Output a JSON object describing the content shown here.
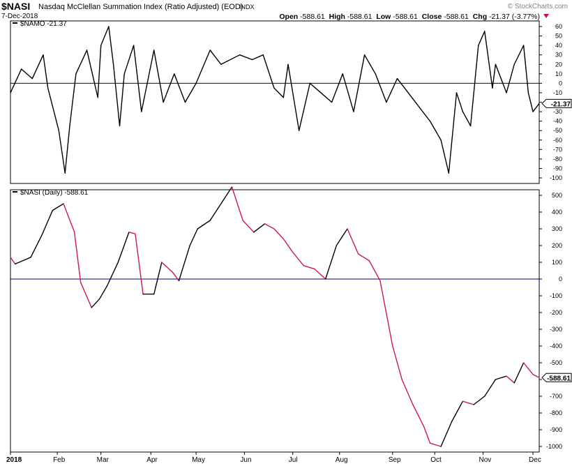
{
  "header": {
    "symbol": "$NASI",
    "title": "Nasdaq McClellan Summation Index (Ratio Adjusted) (EOD)",
    "exchange": "INDX",
    "brand": "© StockCharts.com",
    "date": "7-Dec-2018",
    "open_label": "Open",
    "open": "-588.61",
    "high_label": "High",
    "high": "-588.61",
    "low_label": "Low",
    "low": "-588.61",
    "close_label": "Close",
    "close": "-588.61",
    "chg_label": "Chg",
    "chg": "-21.37 (-3.77%)"
  },
  "colors": {
    "rising": "#000000",
    "falling": "#cc1a45",
    "zero_line": "#00006e",
    "grid": "#c0c0c0",
    "down_arrow": "#c0143c"
  },
  "chart_data": [
    {
      "type": "line",
      "legend": "$NAMO -21.37",
      "last_value_label": "-21.37",
      "ylim": [
        -100,
        60
      ],
      "ytick_labels": [
        "60",
        "50",
        "40",
        "30",
        "20",
        "10",
        "0",
        "-10",
        "-20",
        "-30",
        "-40",
        "-50",
        "-60",
        "-70",
        "-80",
        "-90",
        "-100"
      ],
      "zero_line": 0,
      "x": [
        "2018-01-02",
        "2018-01-09",
        "2018-01-16",
        "2018-01-23",
        "2018-01-26",
        "2018-02-02",
        "2018-02-06",
        "2018-02-09",
        "2018-02-13",
        "2018-02-20",
        "2018-02-27",
        "2018-03-01",
        "2018-03-06",
        "2018-03-09",
        "2018-03-13",
        "2018-03-16",
        "2018-03-22",
        "2018-03-27",
        "2018-04-04",
        "2018-04-10",
        "2018-04-17",
        "2018-04-24",
        "2018-05-01",
        "2018-05-10",
        "2018-05-17",
        "2018-05-29",
        "2018-06-06",
        "2018-06-13",
        "2018-06-20",
        "2018-06-26",
        "2018-06-29",
        "2018-07-06",
        "2018-07-13",
        "2018-07-20",
        "2018-07-27",
        "2018-08-03",
        "2018-08-10",
        "2018-08-17",
        "2018-08-24",
        "2018-08-31",
        "2018-09-07",
        "2018-09-14",
        "2018-09-21",
        "2018-09-28",
        "2018-10-05",
        "2018-10-10",
        "2018-10-15",
        "2018-10-19",
        "2018-10-24",
        "2018-10-29",
        "2018-11-02",
        "2018-11-07",
        "2018-11-09",
        "2018-11-16",
        "2018-11-21",
        "2018-11-27",
        "2018-11-30",
        "2018-12-03",
        "2018-12-07"
      ],
      "values": [
        -10,
        15,
        5,
        30,
        -5,
        -50,
        -95,
        -45,
        10,
        35,
        -15,
        40,
        60,
        20,
        -45,
        10,
        40,
        -30,
        35,
        -20,
        10,
        -20,
        0,
        35,
        20,
        30,
        25,
        30,
        -5,
        -15,
        20,
        -50,
        0,
        -10,
        -20,
        10,
        -30,
        30,
        10,
        -20,
        5,
        -10,
        -25,
        -40,
        -60,
        -95,
        -10,
        -30,
        -45,
        40,
        55,
        -5,
        20,
        -10,
        20,
        40,
        -10,
        -30,
        -21.37
      ]
    },
    {
      "type": "line",
      "legend": "$NASI (Daily) -588.61",
      "last_value_label": "-588.61",
      "ylim": [
        -1000,
        500
      ],
      "ytick_labels": [
        "500",
        "400",
        "300",
        "200",
        "100",
        "0",
        "-100",
        "-200",
        "-300",
        "-400",
        "-500",
        "-600",
        "-700",
        "-800",
        "-900",
        "-1000"
      ],
      "zero_line": 0,
      "xtick_labels": [
        "2018",
        "Feb",
        "Mar",
        "Apr",
        "May",
        "Jun",
        "Jul",
        "Aug",
        "Sep",
        "Oct",
        "Nov",
        "Dec"
      ],
      "x": [
        "2018-01-02",
        "2018-01-05",
        "2018-01-10",
        "2018-01-15",
        "2018-01-22",
        "2018-01-29",
        "2018-02-05",
        "2018-02-12",
        "2018-02-16",
        "2018-02-23",
        "2018-02-28",
        "2018-03-05",
        "2018-03-12",
        "2018-03-19",
        "2018-03-23",
        "2018-03-28",
        "2018-04-04",
        "2018-04-09",
        "2018-04-16",
        "2018-04-20",
        "2018-04-27",
        "2018-05-02",
        "2018-05-10",
        "2018-05-17",
        "2018-05-24",
        "2018-05-31",
        "2018-06-07",
        "2018-06-14",
        "2018-06-20",
        "2018-06-26",
        "2018-07-02",
        "2018-07-09",
        "2018-07-16",
        "2018-07-23",
        "2018-07-30",
        "2018-08-06",
        "2018-08-13",
        "2018-08-20",
        "2018-08-27",
        "2018-09-04",
        "2018-09-10",
        "2018-09-17",
        "2018-09-24",
        "2018-09-28",
        "2018-10-05",
        "2018-10-12",
        "2018-10-19",
        "2018-10-26",
        "2018-11-02",
        "2018-11-09",
        "2018-11-16",
        "2018-11-21",
        "2018-11-27",
        "2018-12-03",
        "2018-12-07"
      ],
      "values": [
        130,
        90,
        110,
        130,
        260,
        410,
        450,
        280,
        -20,
        -170,
        -120,
        -40,
        100,
        280,
        270,
        -90,
        -90,
        100,
        40,
        -10,
        200,
        300,
        350,
        450,
        550,
        350,
        280,
        330,
        300,
        240,
        160,
        80,
        60,
        0,
        200,
        300,
        150,
        110,
        -10,
        -400,
        -600,
        -750,
        -880,
        -980,
        -1000,
        -850,
        -730,
        -750,
        -700,
        -600,
        -580,
        -620,
        -500,
        -570,
        -588.61
      ]
    }
  ]
}
